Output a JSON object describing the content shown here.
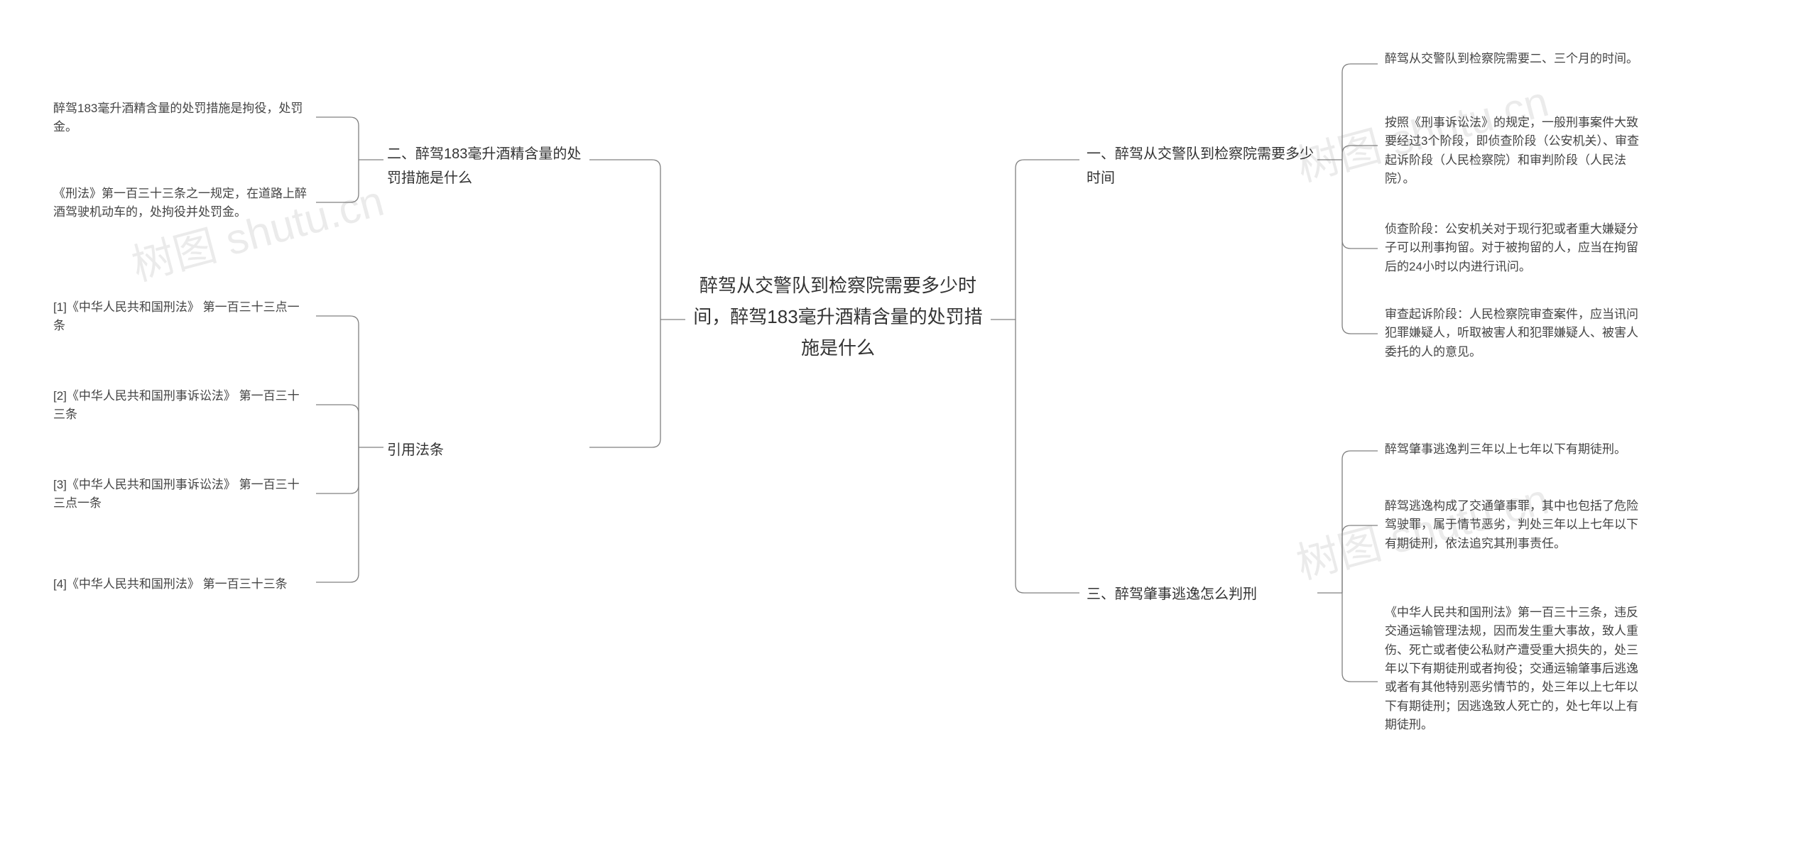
{
  "watermark": "树图 shutu.cn",
  "center": {
    "text": "醉驾从交警队到检察院需要多少时间，醉驾183毫升酒精含量的处罚措施是什么"
  },
  "right": {
    "branch1": {
      "title": "一、醉驾从交警队到检察院需要多少时间",
      "leaves": [
        "醉驾从交警队到检察院需要二、三个月的时间。",
        "按照《刑事诉讼法》的规定，一般刑事案件大致要经过3个阶段，即侦查阶段（公安机关）、审查起诉阶段（人民检察院）和审判阶段（人民法院）。",
        "侦查阶段：公安机关对于现行犯或者重大嫌疑分子可以刑事拘留。对于被拘留的人，应当在拘留后的24小时以内进行讯问。",
        "审查起诉阶段：人民检察院审查案件，应当讯问犯罪嫌疑人，听取被害人和犯罪嫌疑人、被害人委托的人的意见。"
      ]
    },
    "branch3": {
      "title": "三、醉驾肇事逃逸怎么判刑",
      "leaves": [
        "醉驾肇事逃逸判三年以上七年以下有期徒刑。",
        "醉驾逃逸构成了交通肇事罪，其中也包括了危险驾驶罪，属于情节恶劣，判处三年以上七年以下有期徒刑，依法追究其刑事责任。",
        "《中华人民共和国刑法》第一百三十三条，违反交通运输管理法规，因而发生重大事故，致人重伤、死亡或者使公私财产遭受重大损失的，处三年以下有期徒刑或者拘役；交通运输肇事后逃逸或者有其他特别恶劣情节的，处三年以上七年以下有期徒刑；因逃逸致人死亡的，处七年以上有期徒刑。"
      ]
    }
  },
  "left": {
    "branch2": {
      "title": "二、醉驾183毫升酒精含量的处罚措施是什么",
      "leaves": [
        "醉驾183毫升酒精含量的处罚措施是拘役，处罚金。",
        "《刑法》第一百三十三条之一规定，在道路上醉酒驾驶机动车的，处拘役并处罚金。"
      ]
    },
    "branch_cite": {
      "title": "引用法条",
      "leaves": [
        "[1]《中华人民共和国刑法》 第一百三十三点一条",
        "[2]《中华人民共和国刑事诉讼法》 第一百三十三条",
        "[3]《中华人民共和国刑事诉讼法》 第一百三十三点一条",
        "[4]《中华人民共和国刑法》 第一百三十三条"
      ]
    }
  },
  "style": {
    "stroke": "#808080",
    "stroke_width": 1.3,
    "background": "#ffffff",
    "center_fontsize": 26,
    "branch_fontsize": 20,
    "leaf_fontsize": 17
  }
}
